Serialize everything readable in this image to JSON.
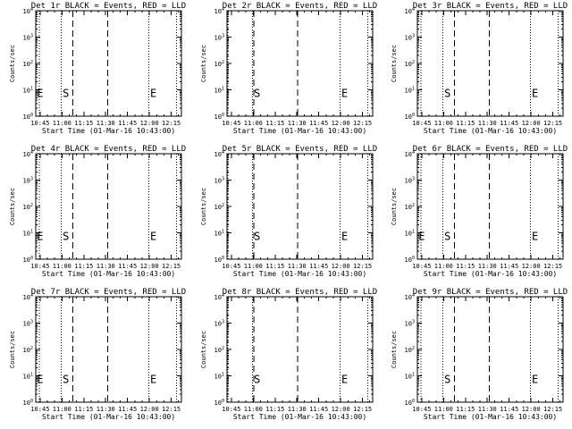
{
  "colors": {
    "background": "#ffffff",
    "ink": "#000000"
  },
  "chart_data": {
    "type": "line",
    "grid": false,
    "layout_rows": 3,
    "layout_cols": 3,
    "xlabel": "Start Time (01-Mar-16 10:43:00)",
    "ylabel": "Counts/sec",
    "x_tick_labels": [
      "10:45",
      "11:00",
      "11:15",
      "11:30",
      "11:45",
      "12:00",
      "12:15"
    ],
    "x_tick_minutes": [
      2,
      17,
      32,
      47,
      62,
      77,
      92
    ],
    "xlim_minutes": [
      -1,
      99
    ],
    "y_scale": "log",
    "ylim": [
      1,
      10000
    ],
    "y_tick_exponents": [
      0,
      1,
      2,
      3,
      4
    ],
    "y_tick_base": "10",
    "markers": [
      {
        "label": "S",
        "minute": 17.5
      },
      {
        "label": "E",
        "minute": 77.5
      }
    ],
    "panels": [
      {
        "title": "Det 1r BLACK = Events, RED = LLD",
        "dotted_x_minutes": [
          1.5,
          16.5,
          76.5,
          95.5
        ],
        "dashed_x_minutes": [
          24.5,
          48.5
        ],
        "edge_labels": [
          {
            "label": "E",
            "minute": -0.2
          }
        ],
        "series": []
      },
      {
        "title": "Det 2r BLACK = Events, RED = LLD",
        "dotted_x_minutes": [
          -0.5,
          16.5,
          76.5,
          95.5
        ],
        "dashed_x_minutes": [
          17.5,
          47.5
        ],
        "edge_labels": [],
        "series": []
      },
      {
        "title": "Det 3r BLACK = Events, RED = LLD",
        "dotted_x_minutes": [
          1.5,
          16.5,
          76.5,
          95.5
        ],
        "dashed_x_minutes": [
          24.5,
          48.5
        ],
        "edge_labels": [],
        "series": []
      },
      {
        "title": "Det 4r BLACK = Events, RED = LLD",
        "dotted_x_minutes": [
          1.5,
          16.5,
          76.5,
          95.5
        ],
        "dashed_x_minutes": [
          24.5,
          48.5
        ],
        "edge_labels": [
          {
            "label": "E",
            "minute": -0.2
          }
        ],
        "series": []
      },
      {
        "title": "Det 5r BLACK = Events, RED = LLD",
        "dotted_x_minutes": [
          -0.5,
          16.5,
          76.5,
          95.5
        ],
        "dashed_x_minutes": [
          17.5,
          47.5
        ],
        "edge_labels": [],
        "series": []
      },
      {
        "title": "Det 6r BLACK = Events, RED = LLD",
        "dotted_x_minutes": [
          1.5,
          16.5,
          76.5,
          95.5
        ],
        "dashed_x_minutes": [
          24.5,
          48.5
        ],
        "edge_labels": [
          {
            "label": "E",
            "minute": -0.2
          }
        ],
        "series": []
      },
      {
        "title": "Det 7r BLACK = Events, RED = LLD",
        "dotted_x_minutes": [
          1.5,
          16.5,
          76.5,
          95.5
        ],
        "dashed_x_minutes": [
          24.5,
          48.5
        ],
        "edge_labels": [
          {
            "label": "E",
            "minute": -0.2
          }
        ],
        "series": []
      },
      {
        "title": "Det 8r BLACK = Events, RED = LLD",
        "dotted_x_minutes": [
          -0.5,
          16.5,
          76.5,
          95.5
        ],
        "dashed_x_minutes": [
          17.5,
          47.5
        ],
        "edge_labels": [],
        "series": []
      },
      {
        "title": "Det 9r BLACK = Events, RED = LLD",
        "dotted_x_minutes": [
          1.5,
          16.5,
          76.5,
          95.5
        ],
        "dashed_x_minutes": [
          24.5,
          48.5
        ],
        "edge_labels": [],
        "series": []
      }
    ]
  }
}
